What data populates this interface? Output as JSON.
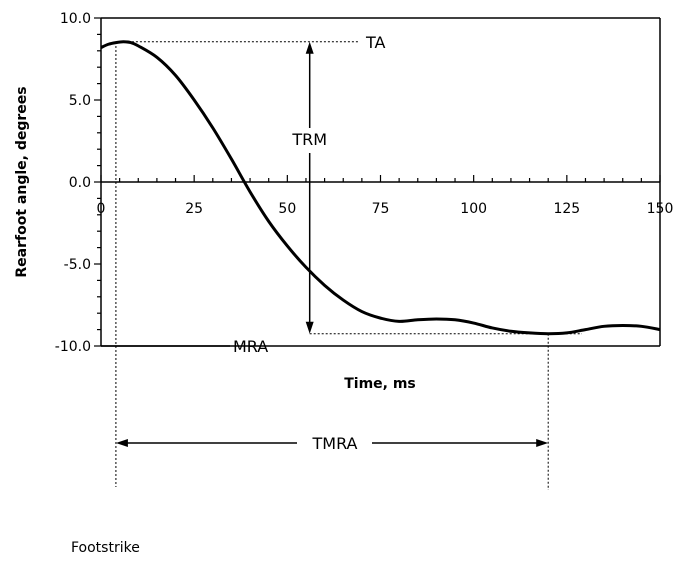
{
  "chart_data": {
    "type": "line",
    "xlabel": "Time, ms",
    "ylabel": "Rearfoot angle, degrees",
    "xlim": [
      0,
      150
    ],
    "ylim": [
      -10,
      10
    ],
    "xticks": [
      0,
      25,
      50,
      75,
      100,
      125,
      150
    ],
    "xtick_labels": [
      "0",
      "25",
      "50",
      "75",
      "100",
      "125",
      "150"
    ],
    "yticks": [
      10,
      5,
      0,
      -5,
      -10
    ],
    "ytick_labels": [
      "10.0",
      "5.0",
      "0.0",
      "-5.0",
      "-10.0"
    ],
    "grid": false,
    "series": [
      {
        "x": [
          0,
          2,
          4,
          6,
          8,
          10,
          15,
          20,
          25,
          30,
          35,
          40,
          45,
          50,
          55,
          60,
          65,
          70,
          75,
          80,
          85,
          90,
          95,
          100,
          105,
          110,
          115,
          120,
          125,
          130,
          135,
          140,
          145,
          150
        ],
        "y": [
          8.2,
          8.4,
          8.5,
          8.55,
          8.5,
          8.3,
          7.6,
          6.5,
          5.0,
          3.3,
          1.4,
          -0.6,
          -2.4,
          -3.9,
          -5.2,
          -6.3,
          -7.2,
          -7.9,
          -8.3,
          -8.5,
          -8.4,
          -8.35,
          -8.4,
          -8.6,
          -8.9,
          -9.1,
          -9.2,
          -9.25,
          -9.2,
          -9.0,
          -8.8,
          -8.75,
          -8.8,
          -9.0
        ]
      }
    ],
    "annotations": {
      "ta": "TA",
      "trm": "TRM",
      "mra": "MRA",
      "tmra": "TMRA",
      "footstrike": "Footstrike",
      "ta_value": 8.55,
      "mra_value": -9.25,
      "footstrike_time": 4,
      "tmra_time": 120,
      "trm_time": 56
    }
  }
}
